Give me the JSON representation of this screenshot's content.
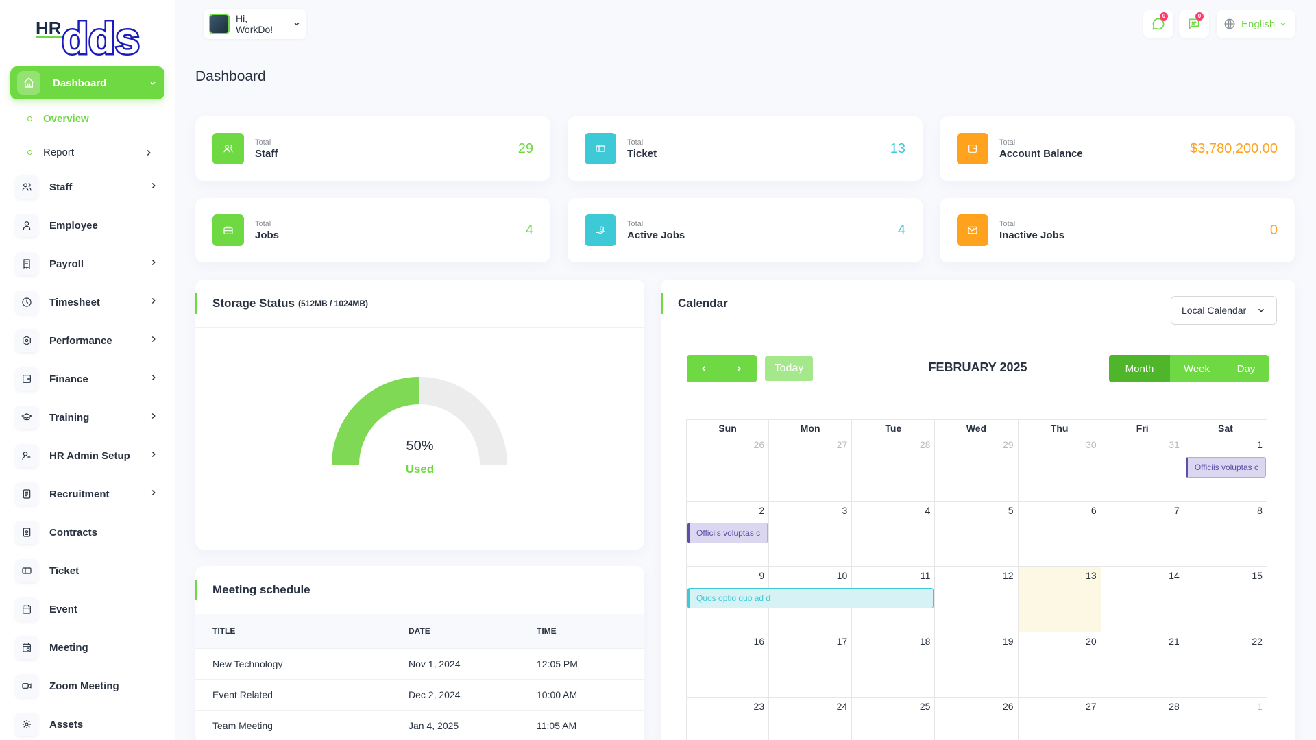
{
  "brand": {
    "logo_text": "HRdds",
    "accent": "#6fd943"
  },
  "sidebar": {
    "dashboard": {
      "label": "Dashboard",
      "icon": "home-icon"
    },
    "sub_items": [
      {
        "label": "Overview",
        "active": true
      },
      {
        "label": "Report",
        "active": false
      }
    ],
    "items": [
      {
        "label": "Staff",
        "icon": "users-icon",
        "has_submenu": true
      },
      {
        "label": "Employee",
        "icon": "user-icon",
        "has_submenu": false
      },
      {
        "label": "Payroll",
        "icon": "receipt-icon",
        "has_submenu": true
      },
      {
        "label": "Timesheet",
        "icon": "clock-icon",
        "has_submenu": true
      },
      {
        "label": "Performance",
        "icon": "hexagon-icon",
        "has_submenu": true
      },
      {
        "label": "Finance",
        "icon": "wallet-icon",
        "has_submenu": true
      },
      {
        "label": "Training",
        "icon": "school-icon",
        "has_submenu": true
      },
      {
        "label": "HR Admin Setup",
        "icon": "user-plus-icon",
        "has_submenu": true
      },
      {
        "label": "Recruitment",
        "icon": "license-icon",
        "has_submenu": true
      },
      {
        "label": "Contracts",
        "icon": "file-contract-icon",
        "has_submenu": false
      },
      {
        "label": "Ticket",
        "icon": "ticket-icon",
        "has_submenu": false
      },
      {
        "label": "Event",
        "icon": "calendar-icon",
        "has_submenu": false
      },
      {
        "label": "Meeting",
        "icon": "calendar-time-icon",
        "has_submenu": false
      },
      {
        "label": "Zoom Meeting",
        "icon": "video-icon",
        "has_submenu": false
      },
      {
        "label": "Assets",
        "icon": "gear-icon",
        "has_submenu": false
      }
    ]
  },
  "header": {
    "greeting": "Hi, WorkDo!",
    "messages_badge": "0",
    "notifications_badge": "0",
    "language": "English"
  },
  "page": {
    "title": "Dashboard"
  },
  "stats": [
    {
      "small": "Total",
      "label": "Staff",
      "value": "29",
      "color": "#6fd943",
      "icon": "users-icon"
    },
    {
      "small": "Total",
      "label": "Ticket",
      "value": "13",
      "color": "#3ec9d6",
      "icon": "ticket-icon"
    },
    {
      "small": "Total",
      "label": "Account Balance",
      "value": "$3,780,200.00",
      "color": "#ffa21d",
      "icon": "wallet-icon"
    },
    {
      "small": "Total",
      "label": "Jobs",
      "value": "4",
      "color": "#6fd943",
      "icon": "briefcase-icon"
    },
    {
      "small": "Total",
      "label": "Active Jobs",
      "value": "4",
      "color": "#3ec9d6",
      "icon": "hand-coin-icon"
    },
    {
      "small": "Total",
      "label": "Inactive Jobs",
      "value": "0",
      "color": "#ffa21d",
      "icon": "mail-x-icon"
    }
  ],
  "storage": {
    "title": "Storage Status",
    "subtitle": "(512MB / 1024MB)",
    "percent_text": "50%",
    "used_label": "Used",
    "used_fraction": 0.5
  },
  "meetings": {
    "title": "Meeting schedule",
    "columns": [
      "TITLE",
      "DATE",
      "TIME"
    ],
    "rows": [
      [
        "New Technology",
        "Nov 1, 2024",
        "12:05 PM"
      ],
      [
        "Event Related",
        "Dec 2, 2024",
        "10:00 AM"
      ],
      [
        "Team Meeting",
        "Jan 4, 2025",
        "11:05 AM"
      ]
    ]
  },
  "calendar": {
    "title": "Calendar",
    "source_select": "Local Calendar",
    "month_title": "FEBRUARY 2025",
    "today_label": "Today",
    "views": [
      "Month",
      "Week",
      "Day"
    ],
    "active_view": "Month",
    "weekdays": [
      "Sun",
      "Mon",
      "Tue",
      "Wed",
      "Thu",
      "Fri",
      "Sat"
    ],
    "weeks": [
      [
        "26",
        "27",
        "28",
        "29",
        "30",
        "31",
        "1"
      ],
      [
        "2",
        "3",
        "4",
        "5",
        "6",
        "7",
        "8"
      ],
      [
        "9",
        "10",
        "11",
        "12",
        "13",
        "14",
        "15"
      ],
      [
        "16",
        "17",
        "18",
        "19",
        "20",
        "21",
        "22"
      ],
      [
        "23",
        "24",
        "25",
        "26",
        "27",
        "28",
        "1"
      ]
    ],
    "today_date": "13",
    "events": [
      {
        "text": "Officiis voluptas c",
        "day": "1",
        "style": "purple"
      },
      {
        "text": "Officiis voluptas c",
        "day": "2",
        "style": "purple"
      },
      {
        "text": "Quos optio quo ad d",
        "day": "9-11",
        "style": "cyan"
      }
    ]
  }
}
